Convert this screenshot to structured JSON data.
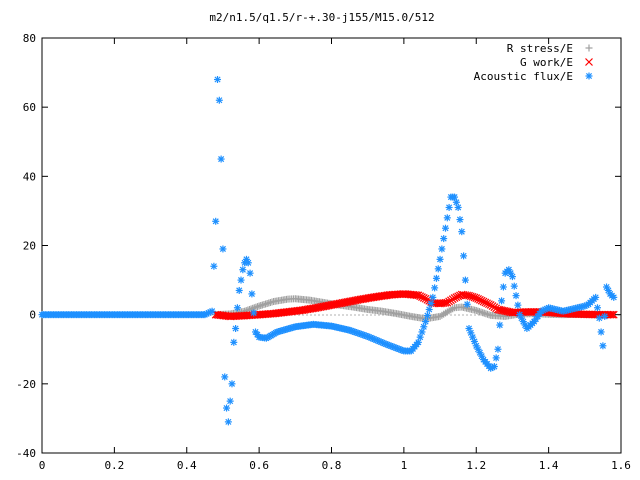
{
  "chart_data": {
    "type": "scatter",
    "title": "m2/n1.5/q1.5/r-+.30-j155/M15.0/512",
    "xlabel": "",
    "ylabel": "",
    "xlim": [
      0,
      1.6
    ],
    "ylim": [
      -40,
      80
    ],
    "x_ticks": [
      "0",
      "0.2",
      "0.4",
      "0.6",
      "0.8",
      "1",
      "1.2",
      "1.4",
      "1.6"
    ],
    "y_ticks": [
      "-40",
      "-20",
      "0",
      "20",
      "40",
      "60",
      "80"
    ],
    "grid": false,
    "legend_position": "top-right",
    "series": [
      {
        "name": "R stress/E",
        "marker": "plus",
        "color": "#a0a0a0",
        "x": [
          0.48,
          0.52,
          0.56,
          0.6,
          0.64,
          0.68,
          0.7,
          0.74,
          0.78,
          0.82,
          0.86,
          0.9,
          0.94,
          0.98,
          1.02,
          1.06,
          1.1,
          1.12,
          1.14,
          1.16,
          1.2,
          1.24,
          1.28,
          1.32,
          1.36,
          1.4,
          1.44,
          1.48,
          1.52,
          1.56
        ],
        "y": [
          0,
          0.2,
          1,
          2.5,
          3.8,
          4.5,
          4.6,
          4.2,
          3.5,
          2.8,
          2.2,
          1.5,
          1,
          0.3,
          -0.5,
          -1.2,
          -0.5,
          0.8,
          2,
          2.2,
          1.2,
          -0.2,
          -0.5,
          0.2,
          0.3,
          0.1,
          0,
          0.1,
          0,
          0
        ]
      },
      {
        "name": "G work/E",
        "marker": "cross",
        "color": "#ff0000",
        "x": [
          0.48,
          0.52,
          0.56,
          0.6,
          0.64,
          0.68,
          0.72,
          0.76,
          0.8,
          0.84,
          0.88,
          0.92,
          0.96,
          1,
          1.04,
          1.06,
          1.08,
          1.1,
          1.12,
          1.14,
          1.16,
          1.18,
          1.2,
          1.22,
          1.24,
          1.26,
          1.3,
          1.34,
          1.38,
          1.42,
          1.46,
          1.5,
          1.54,
          1.58
        ],
        "y": [
          0,
          -0.5,
          -0.3,
          0,
          0.3,
          0.8,
          1.3,
          2,
          2.8,
          3.6,
          4.4,
          5.1,
          5.7,
          6,
          5.6,
          4.6,
          3.4,
          3.2,
          3.5,
          4.8,
          5.8,
          5.5,
          4.8,
          3.8,
          2.8,
          1.5,
          0.6,
          0.8,
          0.8,
          0.5,
          0.2,
          0.1,
          0,
          0
        ]
      },
      {
        "name": "Acoustic flux/E",
        "marker": "star",
        "color": "#1e90ff",
        "x": [
          0,
          0.05,
          0.1,
          0.15,
          0.2,
          0.25,
          0.3,
          0.35,
          0.4,
          0.45,
          0.47,
          0.48,
          0.485,
          0.49,
          0.495,
          0.5,
          0.505,
          0.51,
          0.515,
          0.52,
          0.525,
          0.53,
          0.535,
          0.54,
          0.545,
          0.55,
          0.555,
          0.56,
          0.565,
          0.57,
          0.575,
          0.58,
          0.59,
          0.6,
          0.62,
          0.65,
          0.7,
          0.75,
          0.8,
          0.85,
          0.9,
          0.95,
          1,
          1.02,
          1.04,
          1.06,
          1.08,
          1.1,
          1.12,
          1.13,
          1.14,
          1.15,
          1.16,
          1.17,
          1.18,
          1.2,
          1.22,
          1.24,
          1.25,
          1.26,
          1.27,
          1.28,
          1.29,
          1.3,
          1.32,
          1.34,
          1.36,
          1.38,
          1.4,
          1.42,
          1.44,
          1.46,
          1.48,
          1.5,
          1.51,
          1.52,
          1.53,
          1.54,
          1.55,
          1.56,
          1.57,
          1.58
        ],
        "y": [
          0,
          0,
          0,
          0,
          0,
          0,
          0,
          0,
          0,
          0,
          1,
          27,
          68,
          62,
          45,
          19,
          -18,
          -27,
          -31,
          -25,
          -20,
          -8,
          -4,
          2,
          7,
          10,
          13,
          15,
          16,
          15,
          12,
          6,
          -5,
          -6.5,
          -6.8,
          -5,
          -3.5,
          -2.8,
          -3.3,
          -4.5,
          -6.3,
          -8.5,
          -10.5,
          -10.5,
          -8,
          -2,
          5,
          16,
          28,
          34,
          34,
          31,
          24,
          10,
          -4,
          -9,
          -13,
          -15.5,
          -15,
          -10,
          4,
          12,
          13,
          11,
          0,
          -4,
          -2,
          1,
          2,
          1.5,
          1,
          1.5,
          2,
          2.5,
          3,
          4,
          5,
          -1,
          -9,
          8,
          6,
          5
        ]
      }
    ]
  }
}
